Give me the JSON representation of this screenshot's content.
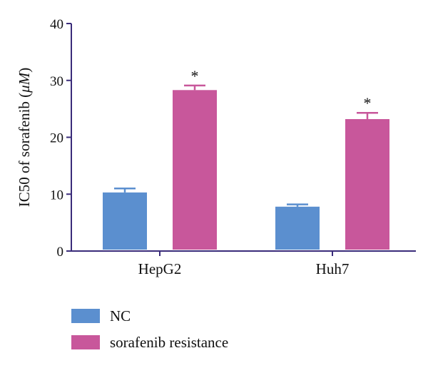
{
  "chart_data": {
    "type": "bar",
    "title": "",
    "xlabel": "",
    "ylabel": "IC50 of sorafenib (μM)",
    "ylabel_parts": {
      "before": "IC50 of sorafenib (",
      "italic": "μM",
      "after": ")"
    },
    "ylim": [
      0,
      40
    ],
    "yticks": [
      0,
      10,
      20,
      30,
      40
    ],
    "categories": [
      "HepG2",
      "Huh7"
    ],
    "series": [
      {
        "name": "NC",
        "color": "#5b8fcf",
        "values": [
          10.3,
          7.8
        ],
        "errors": [
          0.7,
          0.4
        ],
        "significance": [
          "",
          ""
        ]
      },
      {
        "name": "sorafenib resistance",
        "color": "#c8579b",
        "values": [
          28.3,
          23.2
        ],
        "errors": [
          0.8,
          1.1
        ],
        "significance": [
          "*",
          "*"
        ]
      }
    ],
    "grid": false,
    "legend_position": "bottom-left",
    "axis_color": "#3a2c7a"
  }
}
